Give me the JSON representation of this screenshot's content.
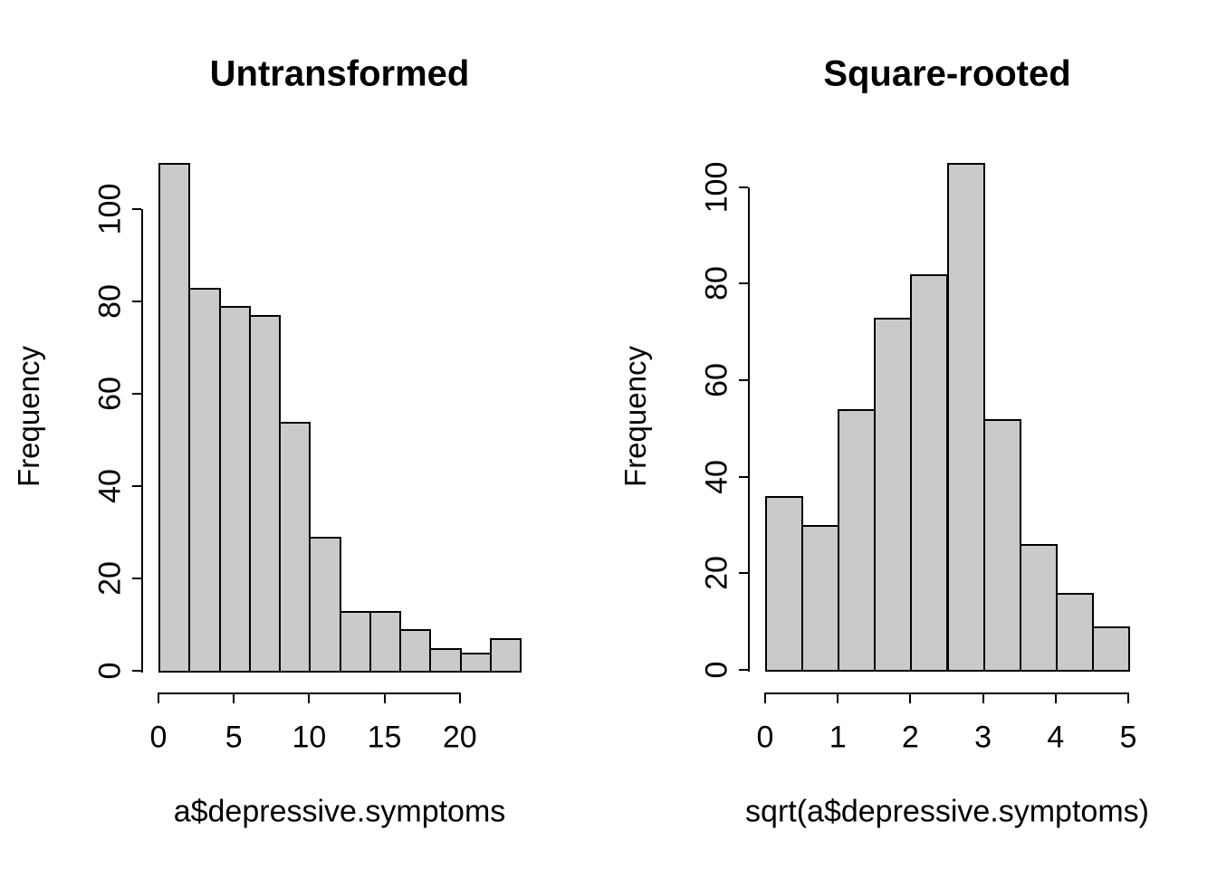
{
  "figure": {
    "background": "#ffffff",
    "bar_fill": "#cacaca",
    "bar_border": "#000000"
  },
  "chart_data": [
    {
      "type": "bar",
      "subtype": "histogram",
      "title": "Untransformed",
      "xlabel": "a$depressive.symptoms",
      "ylabel": "Frequency",
      "bin_start": 0,
      "bin_width": 2,
      "bin_edges": [
        0,
        2,
        4,
        6,
        8,
        10,
        12,
        14,
        16,
        18,
        20,
        22,
        24
      ],
      "counts": [
        110,
        83,
        79,
        77,
        54,
        29,
        13,
        13,
        9,
        5,
        4,
        7
      ],
      "x_ticks": [
        0,
        5,
        10,
        15,
        20
      ],
      "y_ticks": [
        0,
        20,
        40,
        60,
        80,
        100
      ],
      "xlim": [
        0,
        24
      ],
      "ylim": [
        0,
        110
      ],
      "grid": "off",
      "legend": "none"
    },
    {
      "type": "bar",
      "subtype": "histogram",
      "title": "Square-rooted",
      "xlabel": "sqrt(a$depressive.symptoms)",
      "ylabel": "Frequency",
      "bin_start": 0,
      "bin_width": 0.5,
      "bin_edges": [
        0,
        0.5,
        1,
        1.5,
        2,
        2.5,
        3,
        3.5,
        4,
        4.5,
        5
      ],
      "counts": [
        36,
        30,
        54,
        73,
        82,
        105,
        52,
        26,
        16,
        9
      ],
      "x_ticks": [
        0,
        1,
        2,
        3,
        4,
        5
      ],
      "y_ticks": [
        0,
        20,
        40,
        60,
        80,
        100
      ],
      "xlim": [
        0,
        5
      ],
      "ylim": [
        0,
        105
      ],
      "grid": "off",
      "legend": "none"
    }
  ]
}
